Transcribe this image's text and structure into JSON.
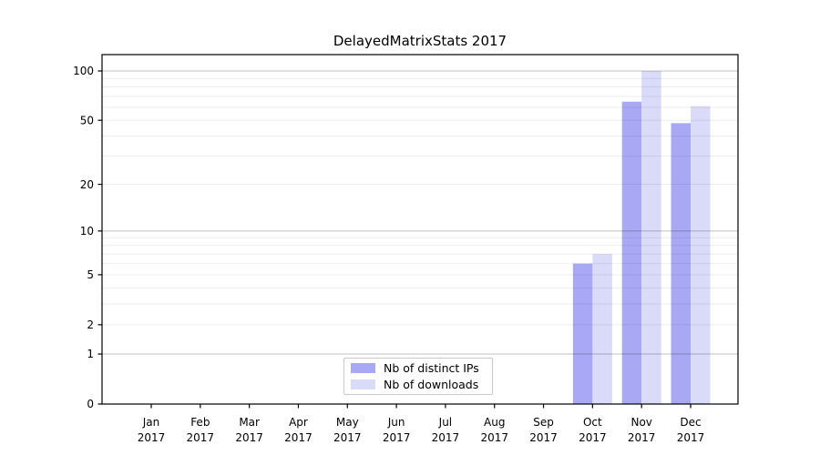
{
  "title": "DelayedMatrixStats 2017",
  "colors": {
    "ips_bar": "#a8a8f4",
    "downloads_bar": "#dadaf9",
    "major_grid": "rgba(0,0,0,0.24)",
    "minor_grid": "rgba(0,0,0,0.07)",
    "axis": "#000000",
    "legend_border": "#c9c9c9",
    "background": "#ffffff"
  },
  "chart_data": {
    "type": "bar",
    "title": "DelayedMatrixStats 2017",
    "categories": [
      "Jan",
      "Feb",
      "Mar",
      "Apr",
      "May",
      "Jun",
      "Jul",
      "Aug",
      "Sep",
      "Oct",
      "Nov",
      "Dec"
    ],
    "year": "2017",
    "series": [
      {
        "name": "Nb of distinct IPs",
        "color": "#a8a8f4",
        "values": [
          0,
          0,
          0,
          0,
          0,
          0,
          0,
          0,
          0,
          6,
          65,
          48
        ]
      },
      {
        "name": "Nb of downloads",
        "color": "#dadaf9",
        "values": [
          0,
          0,
          0,
          0,
          0,
          0,
          0,
          0,
          0,
          7,
          100,
          61
        ]
      }
    ],
    "xlabel": "",
    "ylabel": "",
    "yscale": "log1p",
    "ylim": [
      0,
      126
    ],
    "yticks": [
      0,
      1,
      2,
      5,
      10,
      20,
      50,
      100
    ],
    "major_gridlines": [
      1,
      10,
      100
    ],
    "minor_gridlines": [
      2,
      3,
      4,
      5,
      6,
      7,
      8,
      9,
      20,
      30,
      40,
      50,
      60,
      70,
      80,
      90
    ],
    "grid": "horizontal",
    "legend_position": "lower center inside plot"
  },
  "legend": {
    "items": [
      {
        "label": "Nb of distinct IPs"
      },
      {
        "label": "Nb of downloads"
      }
    ]
  }
}
